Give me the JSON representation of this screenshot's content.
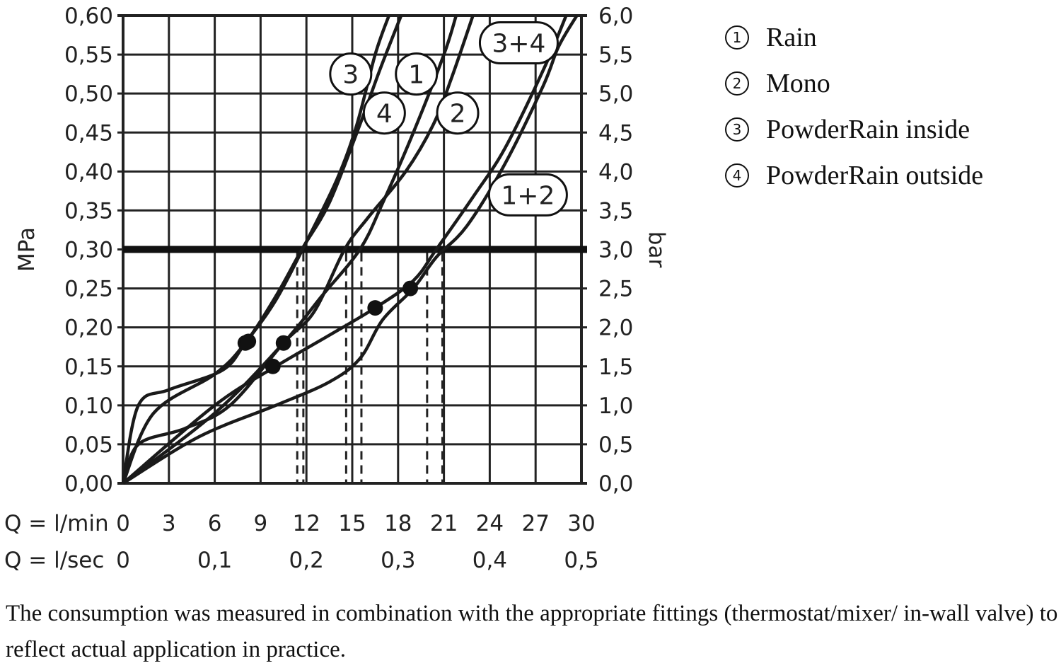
{
  "chart_data": {
    "type": "line",
    "title": "",
    "ylabel_left": "MPa",
    "ylabel_right": "bar",
    "xlabel_rows": [
      {
        "label": "Q = l/min",
        "ticks": [
          "0",
          "3",
          "6",
          "9",
          "12",
          "15",
          "18",
          "21",
          "24",
          "27",
          "30"
        ],
        "values": [
          0,
          3,
          6,
          9,
          12,
          15,
          18,
          21,
          24,
          27,
          30
        ]
      },
      {
        "label": "Q = l/sec",
        "ticks": [
          "0",
          "0,1",
          "0,2",
          "0,3",
          "0,4",
          "0,5"
        ],
        "values": [
          0,
          6,
          12,
          18,
          24,
          30
        ]
      }
    ],
    "xlim": [
      0,
      30
    ],
    "ylim": [
      0,
      0.6
    ],
    "yticks_left": [
      "0,00",
      "0,05",
      "0,10",
      "0,15",
      "0,20",
      "0,25",
      "0,30",
      "0,35",
      "0,40",
      "0,45",
      "0,50",
      "0,55",
      "0,60"
    ],
    "yticks_right": [
      "0,0",
      "0,5",
      "1,0",
      "1,5",
      "2,0",
      "2,5",
      "3,0",
      "3,5",
      "4,0",
      "4,5",
      "5,0",
      "5,5",
      "6,0"
    ],
    "grid": true,
    "reference_line": 0.3,
    "series": [
      {
        "name": "3",
        "x": [
          0,
          1,
          3,
          6.5,
          8,
          10,
          12,
          14,
          15.3,
          16.5,
          17.4
        ],
        "y": [
          0,
          0.1,
          0.12,
          0.145,
          0.18,
          0.235,
          0.31,
          0.39,
          0.46,
          0.55,
          0.6
        ]
      },
      {
        "name": "4",
        "x": [
          0,
          2,
          6,
          8,
          10,
          11.7,
          13.5,
          15.5,
          16.8,
          18.2
        ],
        "y": [
          0,
          0.09,
          0.14,
          0.18,
          0.24,
          0.3,
          0.36,
          0.46,
          0.53,
          0.6
        ]
      },
      {
        "name": "1",
        "x": [
          0,
          6,
          10.5,
          13,
          15.5,
          17,
          19,
          21,
          21.8
        ],
        "y": [
          0,
          0.09,
          0.18,
          0.24,
          0.3,
          0.36,
          0.45,
          0.55,
          0.6
        ]
      },
      {
        "name": "2",
        "x": [
          0,
          1,
          4,
          7,
          10.5,
          12.5,
          14.5,
          16,
          18.5,
          20.3,
          21.5,
          22.9
        ],
        "y": [
          0,
          0.05,
          0.07,
          0.1,
          0.18,
          0.22,
          0.3,
          0.34,
          0.4,
          0.46,
          0.52,
          0.6
        ]
      },
      {
        "name": "1+2",
        "x": [
          0,
          6,
          10,
          13.5,
          16.5,
          19,
          20.5,
          23,
          25,
          27.5,
          29
        ],
        "y": [
          0,
          0.1,
          0.15,
          0.19,
          0.225,
          0.26,
          0.3,
          0.37,
          0.43,
          0.53,
          0.6
        ]
      },
      {
        "name": "3+4",
        "x": [
          0,
          5,
          10,
          13.5,
          15.5,
          17,
          19,
          20.5,
          22.5,
          25,
          27.5,
          28.5,
          29.7
        ],
        "y": [
          0,
          0.06,
          0.1,
          0.13,
          0.16,
          0.21,
          0.25,
          0.29,
          0.33,
          0.41,
          0.51,
          0.56,
          0.6
        ]
      }
    ],
    "markers": [
      {
        "x": 8,
        "y": 0.18
      },
      {
        "x": 8.2,
        "y": 0.182
      },
      {
        "x": 10.5,
        "y": 0.18
      },
      {
        "x": 9.8,
        "y": 0.15
      },
      {
        "x": 16.5,
        "y": 0.225
      },
      {
        "x": 18.8,
        "y": 0.25
      }
    ],
    "dashed_x": [
      11.4,
      11.8,
      14.6,
      15.6,
      19.9,
      20.9
    ],
    "curve_labels": [
      {
        "text": "3",
        "x": 14.9,
        "y": 0.525
      },
      {
        "text": "1",
        "x": 19.2,
        "y": 0.525
      },
      {
        "text": "4",
        "x": 17.1,
        "y": 0.475
      },
      {
        "text": "2",
        "x": 21.9,
        "y": 0.475
      },
      {
        "text": "3+4",
        "x": 25.9,
        "y": 0.565
      },
      {
        "text": "1+2",
        "x": 26.5,
        "y": 0.37
      }
    ]
  },
  "legend": [
    {
      "num": "1",
      "label": "Rain"
    },
    {
      "num": "2",
      "label": "Mono"
    },
    {
      "num": "3",
      "label": "PowderRain inside"
    },
    {
      "num": "4",
      "label": "PowderRain outside"
    }
  ],
  "caption": "The consumption was measured in combination with the appropriate fittings (thermostat/mixer/ in-wall valve) to reflect actual application in practice."
}
